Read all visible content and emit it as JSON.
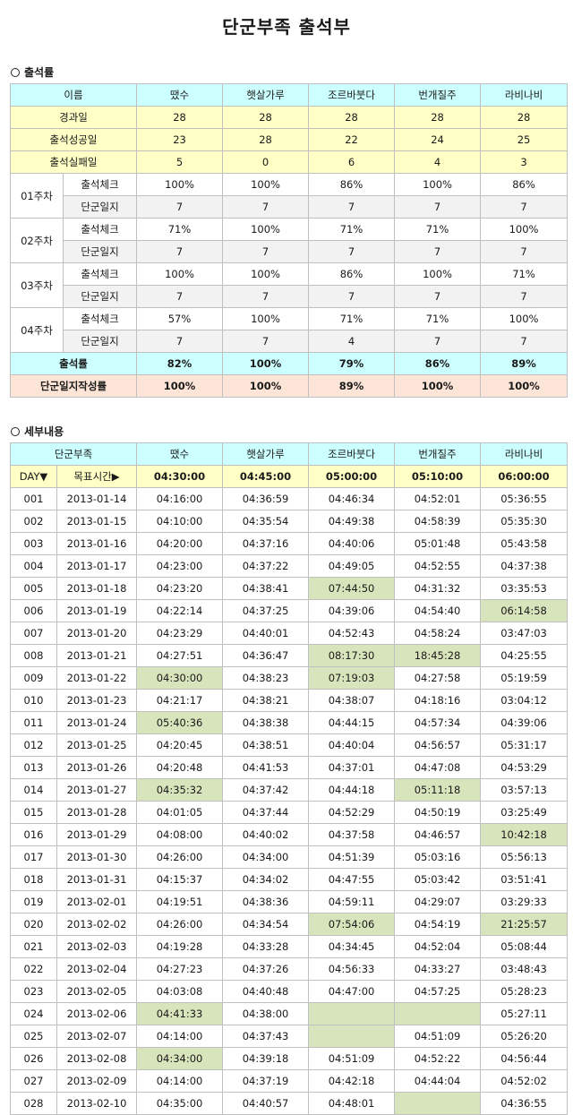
{
  "title": "단군부족 출석부",
  "summary": {
    "heading": "출석률",
    "header": [
      "이름",
      "땠수",
      "햇살가루",
      "조르바붓다",
      "번개질주",
      "라비나비"
    ],
    "members": [
      "땠수",
      "햇살가루",
      "조르바붓다",
      "번개질주",
      "라비나비"
    ],
    "stats": [
      {
        "label": "경과일",
        "values": [
          "28",
          "28",
          "28",
          "28",
          "28"
        ]
      },
      {
        "label": "출석성공일",
        "values": [
          "23",
          "28",
          "22",
          "24",
          "25"
        ]
      },
      {
        "label": "출석실패일",
        "values": [
          "5",
          "0",
          "6",
          "4",
          "3"
        ]
      }
    ],
    "weeks": [
      {
        "label": "01주차",
        "check_label": "출석체크",
        "log_label": "단군일지",
        "check": [
          "100%",
          "100%",
          "86%",
          "100%",
          "86%"
        ],
        "log": [
          "7",
          "7",
          "7",
          "7",
          "7"
        ]
      },
      {
        "label": "02주차",
        "check_label": "출석체크",
        "log_label": "단군일지",
        "check": [
          "71%",
          "100%",
          "71%",
          "71%",
          "100%"
        ],
        "log": [
          "7",
          "7",
          "7",
          "7",
          "7"
        ]
      },
      {
        "label": "03주차",
        "check_label": "출석체크",
        "log_label": "단군일지",
        "check": [
          "100%",
          "100%",
          "86%",
          "100%",
          "71%"
        ],
        "log": [
          "7",
          "7",
          "7",
          "7",
          "7"
        ]
      },
      {
        "label": "04주차",
        "check_label": "출석체크",
        "log_label": "단군일지",
        "check": [
          "57%",
          "100%",
          "71%",
          "71%",
          "100%"
        ],
        "log": [
          "7",
          "7",
          "4",
          "7",
          "7"
        ]
      }
    ],
    "rate": {
      "label": "출석률",
      "values": [
        "82%",
        "100%",
        "79%",
        "86%",
        "89%"
      ]
    },
    "log_rate": {
      "label": "단군일지작성률",
      "values": [
        "100%",
        "100%",
        "89%",
        "100%",
        "100%"
      ]
    }
  },
  "detail": {
    "heading": "세부내용",
    "header_label": "단군부족",
    "members": [
      "땠수",
      "햇살가루",
      "조르바붓다",
      "번개질주",
      "라비나비"
    ],
    "day_label": "DAY▼",
    "target_label": "목표시간▶",
    "targets": [
      "04:30:00",
      "04:45:00",
      "05:00:00",
      "05:10:00",
      "06:00:00"
    ],
    "highlight_color": "#d8e4bc",
    "rows": [
      {
        "day": "001",
        "date": "2013-01-14",
        "times": [
          "04:16:00",
          "04:36:59",
          "04:46:34",
          "04:52:01",
          "05:36:55"
        ],
        "hl": []
      },
      {
        "day": "002",
        "date": "2013-01-15",
        "times": [
          "04:10:00",
          "04:35:54",
          "04:49:38",
          "04:58:39",
          "05:35:30"
        ],
        "hl": []
      },
      {
        "day": "003",
        "date": "2013-01-16",
        "times": [
          "04:20:00",
          "04:37:16",
          "04:40:06",
          "05:01:48",
          "05:43:58"
        ],
        "hl": []
      },
      {
        "day": "004",
        "date": "2013-01-17",
        "times": [
          "04:23:00",
          "04:37:22",
          "04:49:05",
          "04:52:55",
          "04:37:38"
        ],
        "hl": []
      },
      {
        "day": "005",
        "date": "2013-01-18",
        "times": [
          "04:23:20",
          "04:38:41",
          "07:44:50",
          "04:31:32",
          "03:35:53"
        ],
        "hl": [
          2
        ]
      },
      {
        "day": "006",
        "date": "2013-01-19",
        "times": [
          "04:22:14",
          "04:37:25",
          "04:39:06",
          "04:54:40",
          "06:14:58"
        ],
        "hl": [
          4
        ]
      },
      {
        "day": "007",
        "date": "2013-01-20",
        "times": [
          "04:23:29",
          "04:40:01",
          "04:52:43",
          "04:58:24",
          "03:47:03"
        ],
        "hl": []
      },
      {
        "day": "008",
        "date": "2013-01-21",
        "times": [
          "04:27:51",
          "04:36:47",
          "08:17:30",
          "18:45:28",
          "04:25:55"
        ],
        "hl": [
          2,
          3
        ]
      },
      {
        "day": "009",
        "date": "2013-01-22",
        "times": [
          "04:30:00",
          "04:38:23",
          "07:19:03",
          "04:27:58",
          "05:19:59"
        ],
        "hl": [
          0,
          2
        ]
      },
      {
        "day": "010",
        "date": "2013-01-23",
        "times": [
          "04:21:17",
          "04:38:21",
          "04:38:07",
          "04:18:16",
          "03:04:12"
        ],
        "hl": []
      },
      {
        "day": "011",
        "date": "2013-01-24",
        "times": [
          "05:40:36",
          "04:38:38",
          "04:44:15",
          "04:57:34",
          "04:39:06"
        ],
        "hl": [
          0
        ]
      },
      {
        "day": "012",
        "date": "2013-01-25",
        "times": [
          "04:20:45",
          "04:38:51",
          "04:40:04",
          "04:56:57",
          "05:31:17"
        ],
        "hl": []
      },
      {
        "day": "013",
        "date": "2013-01-26",
        "times": [
          "04:20:48",
          "04:41:53",
          "04:37:01",
          "04:47:08",
          "04:53:29"
        ],
        "hl": []
      },
      {
        "day": "014",
        "date": "2013-01-27",
        "times": [
          "04:35:32",
          "04:37:42",
          "04:44:18",
          "05:11:18",
          "03:57:13"
        ],
        "hl": [
          0,
          3
        ]
      },
      {
        "day": "015",
        "date": "2013-01-28",
        "times": [
          "04:01:05",
          "04:37:44",
          "04:52:29",
          "04:50:19",
          "03:25:49"
        ],
        "hl": []
      },
      {
        "day": "016",
        "date": "2013-01-29",
        "times": [
          "04:08:00",
          "04:40:02",
          "04:37:58",
          "04:46:57",
          "10:42:18"
        ],
        "hl": [
          4
        ]
      },
      {
        "day": "017",
        "date": "2013-01-30",
        "times": [
          "04:26:00",
          "04:34:00",
          "04:51:39",
          "05:03:16",
          "05:56:13"
        ],
        "hl": []
      },
      {
        "day": "018",
        "date": "2013-01-31",
        "times": [
          "04:15:37",
          "04:34:02",
          "04:47:55",
          "05:03:42",
          "03:51:41"
        ],
        "hl": []
      },
      {
        "day": "019",
        "date": "2013-02-01",
        "times": [
          "04:19:51",
          "04:38:36",
          "04:59:11",
          "04:29:07",
          "03:29:33"
        ],
        "hl": []
      },
      {
        "day": "020",
        "date": "2013-02-02",
        "times": [
          "04:26:00",
          "04:34:54",
          "07:54:06",
          "04:54:19",
          "21:25:57"
        ],
        "hl": [
          2,
          4
        ]
      },
      {
        "day": "021",
        "date": "2013-02-03",
        "times": [
          "04:19:28",
          "04:33:28",
          "04:34:45",
          "04:52:04",
          "05:08:44"
        ],
        "hl": []
      },
      {
        "day": "022",
        "date": "2013-02-04",
        "times": [
          "04:27:23",
          "04:37:26",
          "04:56:33",
          "04:33:27",
          "03:48:43"
        ],
        "hl": []
      },
      {
        "day": "023",
        "date": "2013-02-05",
        "times": [
          "04:03:08",
          "04:40:48",
          "04:47:00",
          "04:57:25",
          "05:28:23"
        ],
        "hl": []
      },
      {
        "day": "024",
        "date": "2013-02-06",
        "times": [
          "04:41:33",
          "04:38:00",
          "",
          "",
          "05:27:11"
        ],
        "hl": [
          0,
          2,
          3
        ]
      },
      {
        "day": "025",
        "date": "2013-02-07",
        "times": [
          "04:14:00",
          "04:37:43",
          "",
          "04:51:09",
          "05:26:20"
        ],
        "hl": [
          2
        ]
      },
      {
        "day": "026",
        "date": "2013-02-08",
        "times": [
          "04:34:00",
          "04:39:18",
          "04:51:09",
          "04:52:22",
          "04:56:44"
        ],
        "hl": [
          0
        ]
      },
      {
        "day": "027",
        "date": "2013-02-09",
        "times": [
          "04:14:00",
          "04:37:19",
          "04:42:18",
          "04:44:04",
          "04:52:02"
        ],
        "hl": []
      },
      {
        "day": "028",
        "date": "2013-02-10",
        "times": [
          "04:35:00",
          "04:40:57",
          "04:48:01",
          "",
          "04:36:55"
        ],
        "hl": [
          3
        ]
      }
    ]
  }
}
